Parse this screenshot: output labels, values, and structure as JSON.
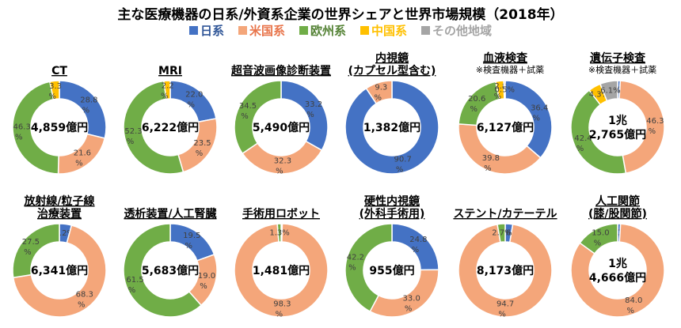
{
  "title": "主な医療機器の日系/外資系企業の世界シェアと世界市場規模（2018年）",
  "legend": [
    {
      "name": "日系",
      "color": "#4472c4",
      "text_color": "#2f5597"
    },
    {
      "name": "米国系",
      "color": "#f4a67a",
      "text_color": "#e8744a"
    },
    {
      "name": "欧州系",
      "color": "#70ad47",
      "text_color": "#548235"
    },
    {
      "name": "中国系",
      "color": "#ffc000",
      "text_color": "#ffc000"
    },
    {
      "name": "その他地域",
      "color": "#a5a5a5",
      "text_color": "#a5a5a5"
    }
  ],
  "chart_data": [
    {
      "type": "pie",
      "variant": "doughnut",
      "title": [
        "CT"
      ],
      "center": [
        "4,859億円"
      ],
      "series": [
        "日系",
        "米国系",
        "欧州系",
        "中国系",
        "その他地域"
      ],
      "values": [
        28.8,
        21.6,
        46.3,
        3.3,
        0
      ],
      "labels": [
        "28.8",
        "21.6",
        "46.3",
        "3.3",
        ""
      ]
    },
    {
      "type": "pie",
      "variant": "doughnut",
      "title": [
        "MRI"
      ],
      "center": [
        "6,222億円"
      ],
      "series": [
        "日系",
        "米国系",
        "欧州系",
        "中国系",
        "その他地域"
      ],
      "values": [
        22.0,
        23.5,
        52.3,
        2.2,
        0
      ],
      "labels": [
        "22.0",
        "23.5",
        "52.3",
        "2.2",
        ""
      ]
    },
    {
      "type": "pie",
      "variant": "doughnut",
      "title": [
        "超音波画像診断装置"
      ],
      "center": [
        "5,490億円"
      ],
      "series": [
        "日系",
        "米国系",
        "欧州系",
        "中国系",
        "その他地域"
      ],
      "values": [
        33.2,
        32.3,
        34.5,
        0,
        0
      ],
      "labels": [
        "33.2",
        "32.3",
        "34.5",
        "",
        ""
      ]
    },
    {
      "type": "pie",
      "variant": "doughnut",
      "title": [
        "内視鏡",
        "(カプセル型含む)"
      ],
      "center": [
        "1,382億円"
      ],
      "series": [
        "日系",
        "米国系",
        "欧州系",
        "中国系",
        "その他地域"
      ],
      "values": [
        90.7,
        9.3,
        0,
        0,
        0
      ],
      "labels": [
        "90.7",
        "9.3",
        "",
        "",
        ""
      ]
    },
    {
      "type": "pie",
      "variant": "doughnut",
      "title": [
        "血液検査"
      ],
      "note": "※検査機器＋試薬",
      "center": [
        "6,127億円"
      ],
      "series": [
        "日系",
        "米国系",
        "欧州系",
        "中国系",
        "その他地域"
      ],
      "values": [
        36.4,
        39.8,
        20.6,
        2.8,
        0.5
      ],
      "labels": [
        "36.4",
        "39.8",
        "20.6",
        "2.8",
        "0.5%"
      ]
    },
    {
      "type": "pie",
      "variant": "doughnut",
      "title": [
        "遺伝子検査"
      ],
      "note": "※検査機器＋試薬",
      "center": [
        "1兆",
        "2,765億円"
      ],
      "series": [
        "日系",
        "米国系",
        "欧州系",
        "中国系",
        "その他地域"
      ],
      "values": [
        0.9,
        46.3,
        42.4,
        4.3,
        6.1
      ],
      "labels": [
        "0.9%",
        "46.3",
        "42.4",
        "4.3%",
        "6.1%"
      ]
    },
    {
      "type": "pie",
      "variant": "doughnut",
      "title": [
        "放射線/粒子線",
        "治療装置"
      ],
      "center": [
        "6,341億円"
      ],
      "series": [
        "日系",
        "米国系",
        "欧州系",
        "中国系",
        "その他地域"
      ],
      "values": [
        4.2,
        68.3,
        27.5,
        0,
        0
      ],
      "labels": [
        "4.2%",
        "68.3",
        "27.5",
        "",
        ""
      ]
    },
    {
      "type": "pie",
      "variant": "doughnut",
      "title": [
        "透析装置/人工腎臓"
      ],
      "center": [
        "5,683億円"
      ],
      "series": [
        "日系",
        "米国系",
        "欧州系",
        "中国系",
        "その他地域"
      ],
      "values": [
        19.5,
        19.0,
        61.5,
        0,
        0
      ],
      "labels": [
        "19.5",
        "19.0",
        "61.5",
        "",
        ""
      ]
    },
    {
      "type": "pie",
      "variant": "doughnut",
      "title": [
        "手術用ロボット"
      ],
      "center": [
        "1,481億円"
      ],
      "series": [
        "日系",
        "米国系",
        "欧州系",
        "中国系",
        "その他地域"
      ],
      "values": [
        0.4,
        98.3,
        1.3,
        0,
        0
      ],
      "labels": [
        "0.4%",
        "98.3",
        "1.3%",
        "",
        ""
      ]
    },
    {
      "type": "pie",
      "variant": "doughnut",
      "title": [
        "硬性内視鏡",
        "(外科手術用)"
      ],
      "center": [
        "955億円"
      ],
      "series": [
        "日系",
        "米国系",
        "欧州系",
        "中国系",
        "その他地域"
      ],
      "values": [
        24.8,
        33.0,
        42.2,
        0,
        0
      ],
      "labels": [
        "24.8",
        "33.0",
        "42.2",
        "",
        ""
      ]
    },
    {
      "type": "pie",
      "variant": "doughnut",
      "title": [
        "ステント/カテーテル"
      ],
      "center": [
        "8,173億円"
      ],
      "series": [
        "日系",
        "米国系",
        "欧州系",
        "中国系",
        "その他地域"
      ],
      "values": [
        2.6,
        94.7,
        2.7,
        0,
        0
      ],
      "labels": [
        "2.6%",
        "94.7",
        "2.7%",
        "",
        ""
      ]
    },
    {
      "type": "pie",
      "variant": "doughnut",
      "title": [
        "人工関節",
        "(膝/股関節)"
      ],
      "center": [
        "1兆",
        "4,666億円"
      ],
      "series": [
        "日系",
        "米国系",
        "欧州系",
        "中国系",
        "その他地域"
      ],
      "values": [
        1.0,
        84.0,
        15.0,
        0,
        0
      ],
      "labels": [
        "1.0%",
        "84.0",
        "15.0",
        "",
        ""
      ]
    }
  ]
}
